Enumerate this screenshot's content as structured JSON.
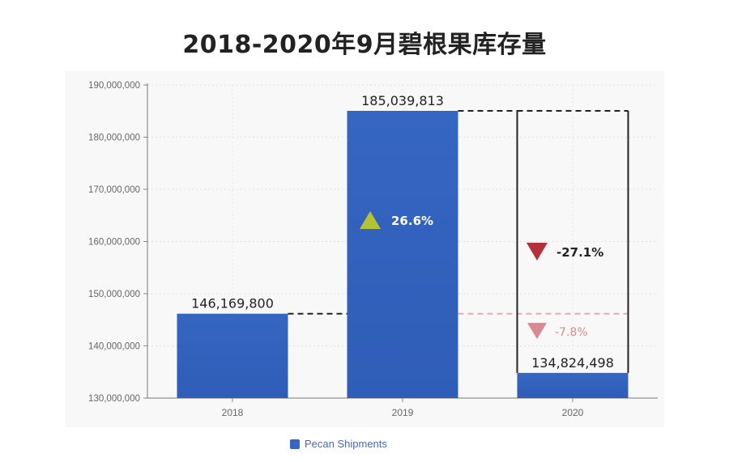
{
  "title": "2018-2020年9月碧根果库存量",
  "legend": {
    "label": "Pecan Shipments",
    "color": "#3566c2"
  },
  "colors": {
    "bar": "#3566c2",
    "up": "#b5c233",
    "down": "#b5313a",
    "down_faded": "#dc8a92"
  },
  "annotations": {
    "change_2019": {
      "label": "26.6%",
      "direction": "up",
      "icon": "triangle-up-icon"
    },
    "change_2020": {
      "label": "-27.1%",
      "direction": "down",
      "icon": "triangle-down-icon"
    },
    "change_2020_vs_2018": {
      "label": "-7.8%",
      "direction": "down",
      "icon": "triangle-down-icon"
    }
  },
  "chart_data": {
    "type": "bar",
    "categories": [
      "2018",
      "2019",
      "2020"
    ],
    "values": [
      146169800,
      185039813,
      134824498
    ],
    "value_labels": [
      "146,169,800",
      "185,039,813",
      "134,824,498"
    ],
    "series": [
      {
        "name": "Pecan Shipments",
        "values": [
          146169800,
          185039813,
          134824498
        ]
      }
    ],
    "ylim": [
      130000000,
      190000000
    ],
    "yticks": [
      130000000,
      140000000,
      150000000,
      160000000,
      170000000,
      180000000,
      190000000
    ],
    "ytick_labels": [
      "130,000,000",
      "140,000,000",
      "150,000,000",
      "160,000,000",
      "170,000,000",
      "180,000,000",
      "190,000,000"
    ],
    "grid": true,
    "legend_position": "bottom"
  }
}
